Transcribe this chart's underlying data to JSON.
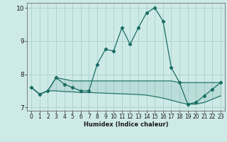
{
  "title": "",
  "xlabel": "Humidex (Indice chaleur)",
  "background_color": "#ceeae7",
  "grid_color": "#aed4d0",
  "line_color": "#1a6e65",
  "xlim": [
    -0.5,
    23.5
  ],
  "ylim": [
    6.9,
    10.15
  ],
  "yticks": [
    7,
    8,
    9,
    10
  ],
  "xticks": [
    0,
    1,
    2,
    3,
    4,
    5,
    6,
    7,
    8,
    9,
    10,
    11,
    12,
    13,
    14,
    15,
    16,
    17,
    18,
    19,
    20,
    21,
    22,
    23
  ],
  "series_main": [
    7.6,
    7.4,
    7.5,
    7.9,
    7.7,
    7.6,
    7.5,
    7.5,
    8.3,
    8.75,
    8.7,
    9.4,
    8.9,
    9.4,
    9.85,
    10.0,
    9.6,
    8.2,
    7.75,
    7.1,
    7.15,
    7.35,
    7.55,
    7.75
  ],
  "series_upper": [
    7.6,
    7.4,
    7.5,
    7.9,
    7.85,
    7.8,
    7.8,
    7.8,
    7.8,
    7.8,
    7.8,
    7.8,
    7.8,
    7.8,
    7.8,
    7.8,
    7.8,
    7.8,
    7.75,
    7.75,
    7.75,
    7.75,
    7.75,
    7.75
  ],
  "series_lower": [
    7.6,
    7.4,
    7.5,
    7.5,
    7.48,
    7.47,
    7.45,
    7.45,
    7.44,
    7.43,
    7.42,
    7.41,
    7.4,
    7.39,
    7.37,
    7.33,
    7.28,
    7.22,
    7.15,
    7.1,
    7.1,
    7.15,
    7.25,
    7.35
  ]
}
